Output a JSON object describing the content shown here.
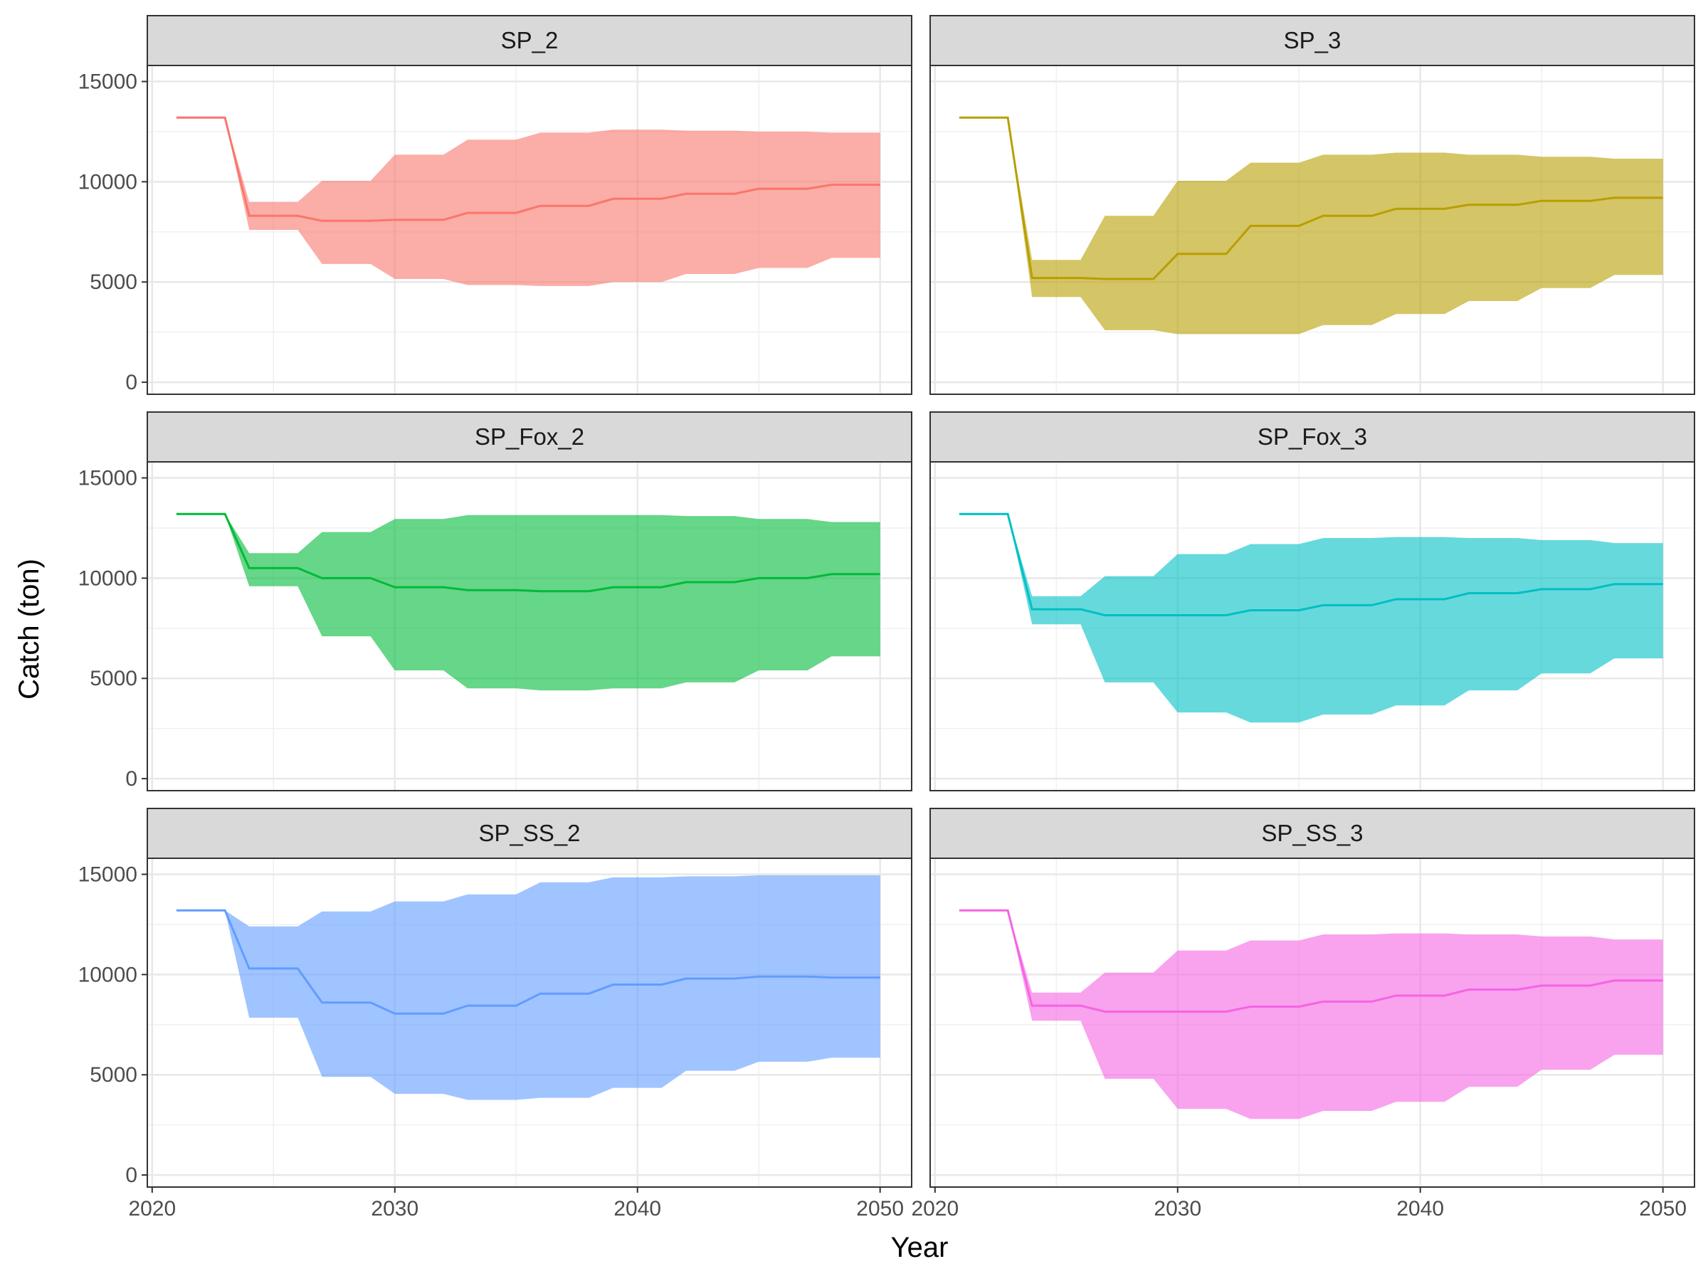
{
  "chart_data": {
    "type": "area",
    "xlabel": "Year",
    "ylabel": "Catch (ton)",
    "xlim": [
      2019.8,
      2051.3
    ],
    "ylim": [
      -600,
      15800
    ],
    "x_ticks": [
      2020,
      2030,
      2040,
      2050
    ],
    "y_ticks": [
      0,
      5000,
      10000,
      15000
    ],
    "grid": true,
    "legend": "none",
    "panels": [
      {
        "name": "SP_2",
        "color": "#F8766D",
        "x": [
          2021,
          2023,
          2024,
          2026,
          2027,
          2029,
          2030,
          2032,
          2033,
          2035,
          2036,
          2038,
          2039,
          2041,
          2042,
          2044,
          2045,
          2047,
          2048,
          2050
        ],
        "median": [
          13200,
          13200,
          8300,
          8300,
          8050,
          8050,
          8100,
          8100,
          8450,
          8450,
          8800,
          8800,
          9150,
          9150,
          9400,
          9400,
          9650,
          9650,
          9850,
          9850
        ],
        "lower": [
          13200,
          13200,
          7600,
          7600,
          5900,
          5900,
          5150,
          5150,
          4850,
          4850,
          4800,
          4800,
          5000,
          5000,
          5400,
          5400,
          5700,
          5700,
          6200,
          6200
        ],
        "upper": [
          13200,
          13200,
          9000,
          9000,
          10050,
          10050,
          11350,
          11350,
          12100,
          12100,
          12450,
          12450,
          12600,
          12600,
          12550,
          12550,
          12500,
          12500,
          12450,
          12450
        ]
      },
      {
        "name": "SP_3",
        "color": "#B79F00",
        "x": [
          2021,
          2023,
          2024,
          2026,
          2027,
          2029,
          2030,
          2032,
          2033,
          2035,
          2036,
          2038,
          2039,
          2041,
          2042,
          2044,
          2045,
          2047,
          2048,
          2050
        ],
        "median": [
          13200,
          13200,
          5200,
          5200,
          5150,
          5150,
          6400,
          6400,
          7800,
          7800,
          8300,
          8300,
          8650,
          8650,
          8850,
          8850,
          9050,
          9050,
          9200,
          9200
        ],
        "lower": [
          13200,
          13200,
          4250,
          4250,
          2600,
          2600,
          2400,
          2400,
          2400,
          2400,
          2850,
          2850,
          3400,
          3400,
          4050,
          4050,
          4700,
          4700,
          5350,
          5350
        ],
        "upper": [
          13200,
          13200,
          6100,
          6100,
          8300,
          8300,
          10050,
          10050,
          10950,
          10950,
          11350,
          11350,
          11450,
          11450,
          11350,
          11350,
          11250,
          11250,
          11150,
          11150
        ]
      },
      {
        "name": "SP_Fox_2",
        "color": "#00BA38",
        "x": [
          2021,
          2023,
          2024,
          2026,
          2027,
          2029,
          2030,
          2032,
          2033,
          2035,
          2036,
          2038,
          2039,
          2041,
          2042,
          2044,
          2045,
          2047,
          2048,
          2050
        ],
        "median": [
          13200,
          13200,
          10500,
          10500,
          10000,
          10000,
          9550,
          9550,
          9400,
          9400,
          9350,
          9350,
          9550,
          9550,
          9800,
          9800,
          10000,
          10000,
          10200,
          10200
        ],
        "lower": [
          13200,
          13200,
          9600,
          9600,
          7100,
          7100,
          5400,
          5400,
          4500,
          4500,
          4400,
          4400,
          4500,
          4500,
          4800,
          4800,
          5400,
          5400,
          6100,
          6100
        ],
        "upper": [
          13200,
          13200,
          11250,
          11250,
          12300,
          12300,
          12950,
          12950,
          13150,
          13150,
          13150,
          13150,
          13150,
          13150,
          13100,
          13100,
          12950,
          12950,
          12800,
          12800
        ]
      },
      {
        "name": "SP_Fox_3",
        "color": "#00BFC4",
        "x": [
          2021,
          2023,
          2024,
          2026,
          2027,
          2029,
          2030,
          2032,
          2033,
          2035,
          2036,
          2038,
          2039,
          2041,
          2042,
          2044,
          2045,
          2047,
          2048,
          2050
        ],
        "median": [
          13200,
          13200,
          8450,
          8450,
          8150,
          8150,
          8150,
          8150,
          8400,
          8400,
          8650,
          8650,
          8950,
          8950,
          9250,
          9250,
          9450,
          9450,
          9700,
          9700
        ],
        "lower": [
          13200,
          13200,
          7700,
          7700,
          4800,
          4800,
          3300,
          3300,
          2800,
          2800,
          3200,
          3200,
          3650,
          3650,
          4400,
          4400,
          5250,
          5250,
          6000,
          6000
        ],
        "upper": [
          13200,
          13200,
          9100,
          9100,
          10100,
          10100,
          11200,
          11200,
          11700,
          11700,
          12000,
          12000,
          12050,
          12050,
          12000,
          12000,
          11900,
          11900,
          11750,
          11750
        ]
      },
      {
        "name": "SP_SS_2",
        "color": "#619CFF",
        "x": [
          2021,
          2023,
          2024,
          2026,
          2027,
          2029,
          2030,
          2032,
          2033,
          2035,
          2036,
          2038,
          2039,
          2041,
          2042,
          2044,
          2045,
          2047,
          2048,
          2050
        ],
        "median": [
          13200,
          13200,
          10300,
          10300,
          8600,
          8600,
          8050,
          8050,
          8450,
          8450,
          9050,
          9050,
          9500,
          9500,
          9800,
          9800,
          9900,
          9900,
          9850,
          9850
        ],
        "lower": [
          13200,
          13200,
          7850,
          7850,
          4900,
          4900,
          4050,
          4050,
          3750,
          3750,
          3850,
          3850,
          4350,
          4350,
          5200,
          5200,
          5650,
          5650,
          5850,
          5850
        ],
        "upper": [
          13200,
          13200,
          12400,
          12400,
          13150,
          13150,
          13650,
          13650,
          14000,
          14000,
          14600,
          14600,
          14850,
          14850,
          14900,
          14900,
          14950,
          14950,
          14950,
          14950
        ]
      },
      {
        "name": "SP_SS_3",
        "color": "#F564E3",
        "x": [
          2021,
          2023,
          2024,
          2026,
          2027,
          2029,
          2030,
          2032,
          2033,
          2035,
          2036,
          2038,
          2039,
          2041,
          2042,
          2044,
          2045,
          2047,
          2048,
          2050
        ],
        "median": [
          13200,
          13200,
          8450,
          8450,
          8150,
          8150,
          8150,
          8150,
          8400,
          8400,
          8650,
          8650,
          8950,
          8950,
          9250,
          9250,
          9450,
          9450,
          9700,
          9700
        ],
        "lower": [
          13200,
          13200,
          7700,
          7700,
          4800,
          4800,
          3300,
          3300,
          2800,
          2800,
          3200,
          3200,
          3650,
          3650,
          4400,
          4400,
          5250,
          5250,
          6000,
          6000
        ],
        "upper": [
          13200,
          13200,
          9100,
          9100,
          10100,
          10100,
          11200,
          11200,
          11700,
          11700,
          12000,
          12000,
          12050,
          12050,
          12000,
          12000,
          11900,
          11900,
          11750,
          11750
        ]
      }
    ]
  }
}
